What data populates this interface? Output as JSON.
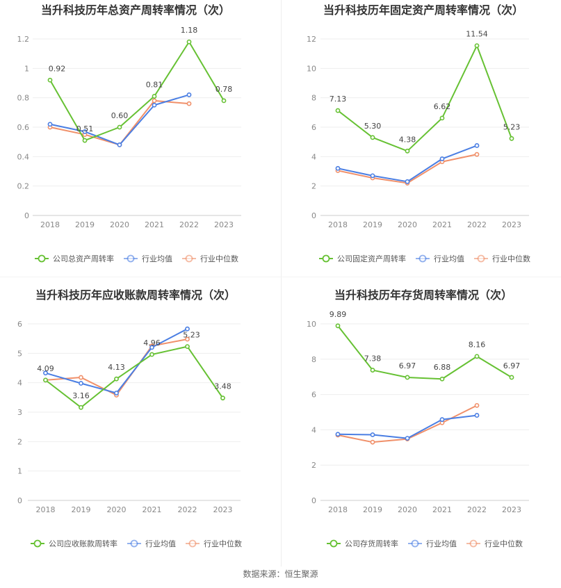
{
  "source_label": "数据来源：恒生聚源",
  "colors": {
    "company": "#66c133",
    "average": "#4a7ee3",
    "median": "#f0906a"
  },
  "chart_data": [
    {
      "type": "line",
      "title": "当升科技历年总资产周转率情况（次）",
      "categories": [
        "2018",
        "2019",
        "2020",
        "2021",
        "2022",
        "2023"
      ],
      "ylim": [
        0,
        1.2
      ],
      "yticks": [
        "0",
        "0.2",
        "0.4",
        "0.6",
        "0.8",
        "1",
        "1.2"
      ],
      "ytick_values": [
        0,
        0.2,
        0.4,
        0.6,
        0.8,
        1.0,
        1.2
      ],
      "series": [
        {
          "name": "公司总资产周转率",
          "key": "company",
          "values": [
            0.92,
            0.51,
            0.6,
            0.81,
            1.18,
            0.78
          ],
          "labels": [
            "0.92",
            "0.51",
            "0.60",
            "0.81",
            "1.18",
            "0.78"
          ]
        },
        {
          "name": "行业均值",
          "key": "average",
          "values": [
            0.62,
            0.57,
            0.48,
            0.75,
            0.82,
            null
          ]
        },
        {
          "name": "行业中位数",
          "key": "median",
          "values": [
            0.6,
            0.55,
            0.48,
            0.78,
            0.76,
            null
          ]
        }
      ]
    },
    {
      "type": "line",
      "title": "当升科技历年固定资产周转率情况（次）",
      "categories": [
        "2018",
        "2019",
        "2020",
        "2021",
        "2022",
        "2023"
      ],
      "ylim": [
        0,
        12
      ],
      "yticks": [
        "0",
        "2",
        "4",
        "6",
        "8",
        "10",
        "12"
      ],
      "ytick_values": [
        0,
        2,
        4,
        6,
        8,
        10,
        12
      ],
      "series": [
        {
          "name": "公司固定资产周转率",
          "key": "company",
          "values": [
            7.13,
            5.3,
            4.38,
            6.62,
            11.54,
            5.23
          ],
          "labels": [
            "7.13",
            "5.30",
            "4.38",
            "6.62",
            "11.54",
            "5.23"
          ]
        },
        {
          "name": "行业均值",
          "key": "average",
          "values": [
            3.2,
            2.7,
            2.3,
            3.85,
            4.75,
            null
          ]
        },
        {
          "name": "行业中位数",
          "key": "median",
          "values": [
            3.05,
            2.55,
            2.2,
            3.65,
            4.15,
            null
          ]
        }
      ]
    },
    {
      "type": "line",
      "title": "当升科技历年应收账款周转率情况（次）",
      "categories": [
        "2018",
        "2019",
        "2020",
        "2021",
        "2022",
        "2023"
      ],
      "ylim": [
        0,
        6
      ],
      "yticks": [
        "0",
        "1",
        "2",
        "3",
        "4",
        "5",
        "6"
      ],
      "ytick_values": [
        0,
        1,
        2,
        3,
        4,
        5,
        6
      ],
      "series": [
        {
          "name": "公司应收账款周转率",
          "key": "company",
          "values": [
            4.09,
            3.16,
            4.13,
            4.96,
            5.23,
            3.48
          ],
          "labels": [
            "4.09",
            "3.16",
            "4.13",
            "4.96",
            "5.23",
            "3.48"
          ]
        },
        {
          "name": "行业均值",
          "key": "average",
          "values": [
            4.33,
            3.98,
            3.65,
            5.2,
            5.83,
            null
          ]
        },
        {
          "name": "行业中位数",
          "key": "median",
          "values": [
            4.09,
            4.18,
            3.58,
            5.25,
            5.48,
            null
          ]
        }
      ]
    },
    {
      "type": "line",
      "title": "当升科技历年存货周转率情况（次）",
      "categories": [
        "2018",
        "2019",
        "2020",
        "2021",
        "2022",
        "2023"
      ],
      "ylim": [
        0,
        10
      ],
      "yticks": [
        "0",
        "2",
        "4",
        "6",
        "8",
        "10"
      ],
      "ytick_values": [
        0,
        2,
        4,
        6,
        8,
        10
      ],
      "series": [
        {
          "name": "公司存货周转率",
          "key": "company",
          "values": [
            9.89,
            7.38,
            6.97,
            6.88,
            8.16,
            6.97
          ],
          "labels": [
            "9.89",
            "7.38",
            "6.97",
            "6.88",
            "8.16",
            "6.97"
          ]
        },
        {
          "name": "行业均值",
          "key": "average",
          "values": [
            3.75,
            3.72,
            3.52,
            4.58,
            4.82,
            null
          ]
        },
        {
          "name": "行业中位数",
          "key": "median",
          "values": [
            3.7,
            3.3,
            3.48,
            4.4,
            5.38,
            null
          ]
        }
      ]
    }
  ]
}
